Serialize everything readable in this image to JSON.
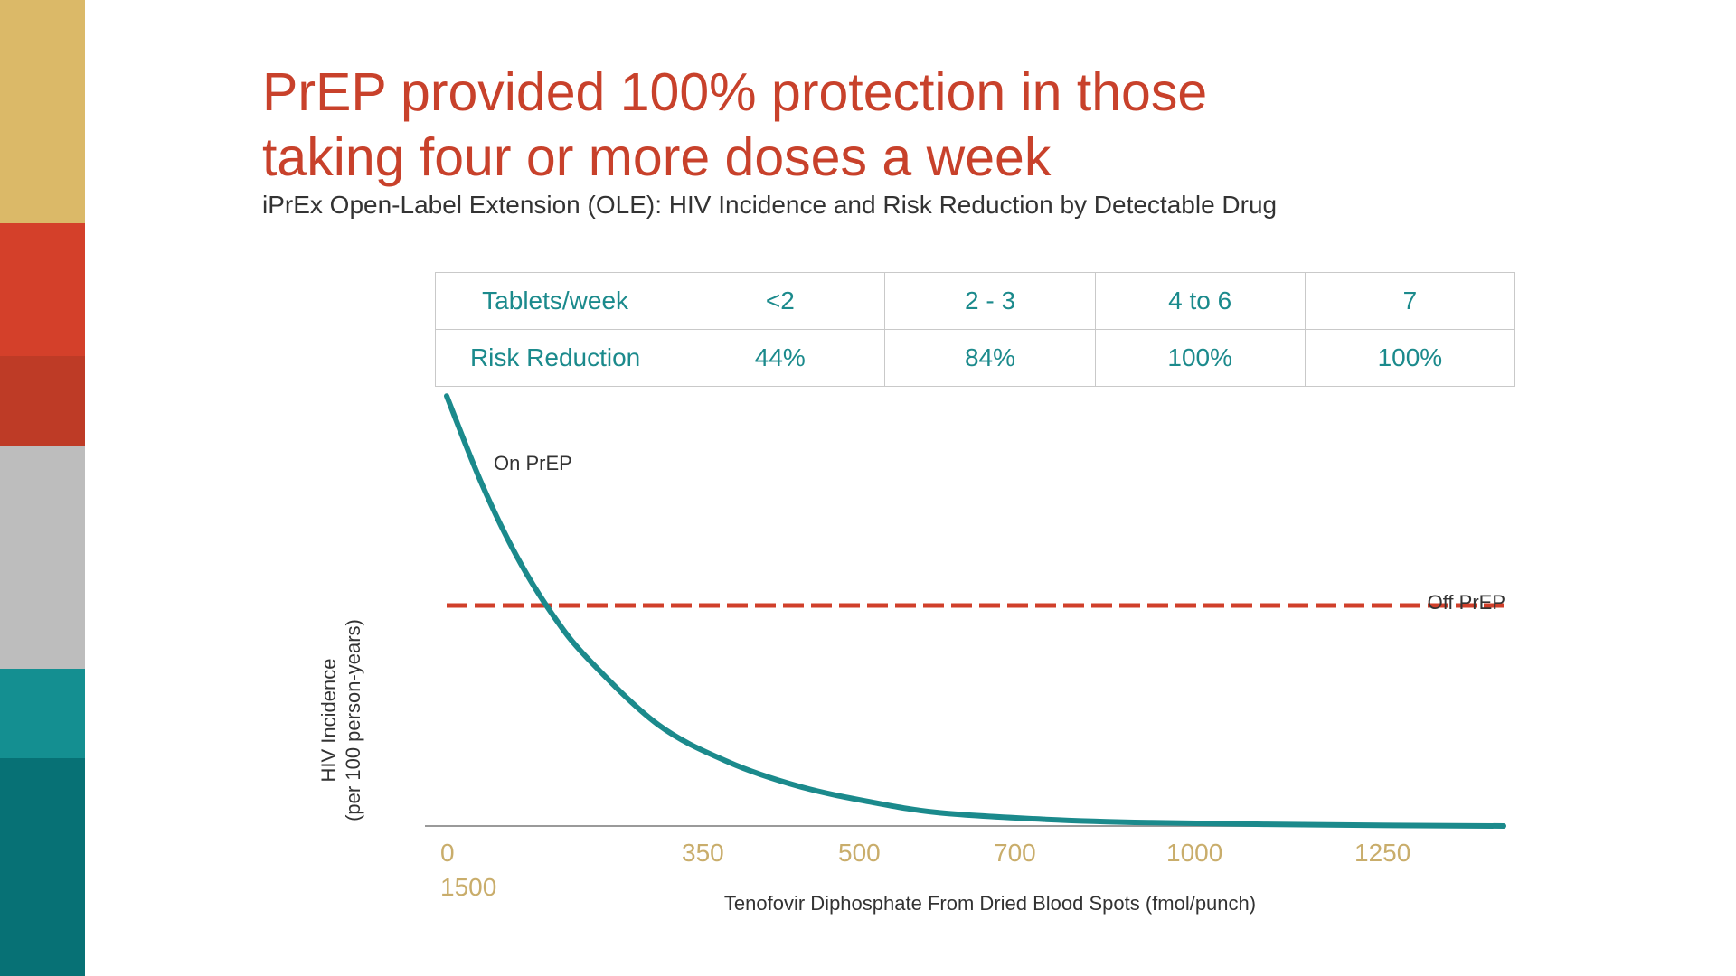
{
  "colors": {
    "title": "#c8412b",
    "on_prep": "#1b8a8c",
    "off_prep": "#d03f2a",
    "tick": "#c9ad6b",
    "table_text": "#1b8a8c",
    "stripes": [
      "#dbb968",
      "#d4402a",
      "#be3b26",
      "#bdbdbd",
      "#148f91",
      "#077175"
    ]
  },
  "title_lines": [
    "PrEP provided 100% protection in those",
    "taking four or more doses a week"
  ],
  "subtitle": "iPrEx Open-Label Extension (OLE): HIV Incidence and Risk Reduction by Detectable Drug",
  "table": {
    "rows": [
      [
        "Tablets/week",
        "<2",
        "2 - 3",
        "4 to 6",
        "7"
      ],
      [
        "Risk Reduction",
        "44%",
        "84%",
        "100%",
        "100%"
      ]
    ]
  },
  "chart_data": {
    "type": "line",
    "xlabel": "Tenofovir Diphosphate From Dried Blood Spots (fmol/punch)",
    "ylabel_lines": [
      "HIV Incidence",
      "(per 100 person-years)"
    ],
    "x_tick_labels": [
      "0",
      "350",
      "500",
      "700",
      "1000",
      "1250",
      "1500"
    ],
    "series": [
      {
        "name": "On PrEP",
        "style": "solid",
        "color": "#1b8a8c",
        "points": [
          [
            0,
            1.95
          ],
          [
            50,
            1.55
          ],
          [
            100,
            1.22
          ],
          [
            150,
            0.96
          ],
          [
            200,
            0.76
          ],
          [
            300,
            0.46
          ],
          [
            400,
            0.29
          ],
          [
            500,
            0.18
          ],
          [
            600,
            0.11
          ],
          [
            700,
            0.06
          ],
          [
            850,
            0.03
          ],
          [
            1000,
            0.015
          ],
          [
            1250,
            0.005
          ],
          [
            1500,
            0.0
          ]
        ]
      },
      {
        "name": "Off PrEP",
        "style": "dashed",
        "color": "#d03f2a",
        "points": [
          [
            0,
            1.0
          ],
          [
            1500,
            1.0
          ]
        ]
      }
    ],
    "grid": false,
    "legend": "inline labels"
  }
}
